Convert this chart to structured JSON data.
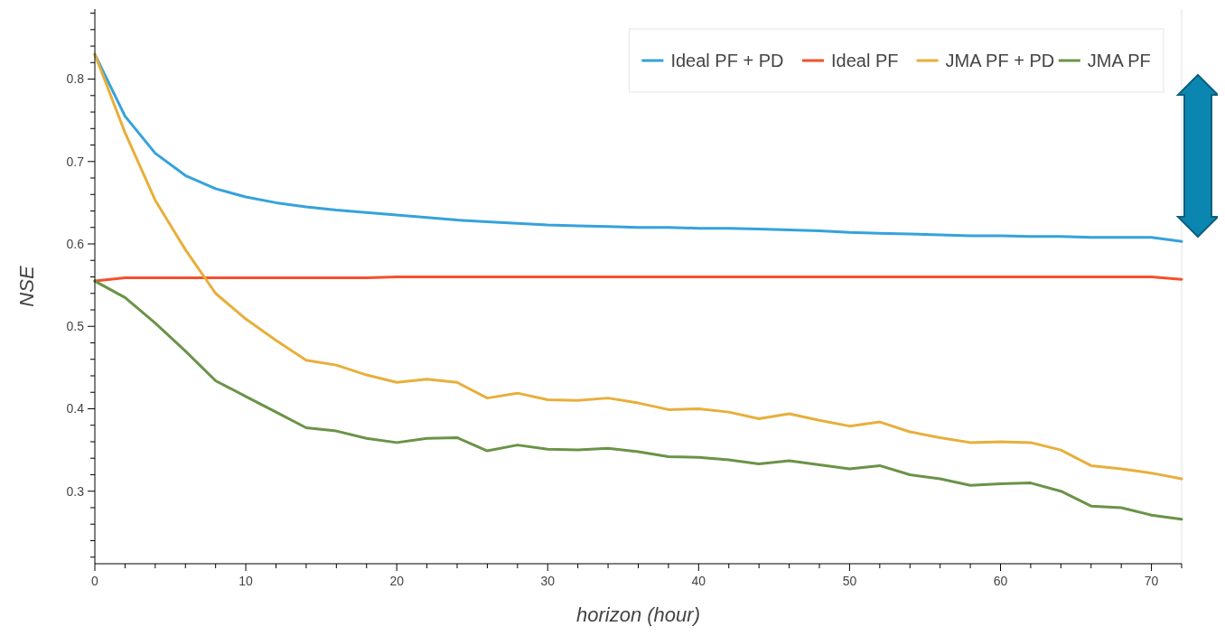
{
  "chart_data": {
    "type": "line",
    "xlabel": "horizon (hour)",
    "ylabel": "NSE",
    "x": [
      0,
      2,
      4,
      6,
      8,
      10,
      12,
      14,
      16,
      18,
      20,
      22,
      24,
      26,
      28,
      30,
      32,
      34,
      36,
      38,
      40,
      42,
      44,
      46,
      48,
      50,
      52,
      54,
      56,
      58,
      60,
      62,
      64,
      66,
      68,
      70,
      72
    ],
    "series": [
      {
        "name": "Ideal PF + PD",
        "color": "#35a2dc",
        "values": [
          0.83,
          0.755,
          0.71,
          0.683,
          0.667,
          0.657,
          0.65,
          0.645,
          0.641,
          0.638,
          0.635,
          0.632,
          0.629,
          0.627,
          0.625,
          0.623,
          0.622,
          0.621,
          0.62,
          0.62,
          0.619,
          0.619,
          0.618,
          0.617,
          0.616,
          0.614,
          0.613,
          0.612,
          0.611,
          0.61,
          0.61,
          0.609,
          0.609,
          0.608,
          0.608,
          0.608,
          0.603
        ]
      },
      {
        "name": "Ideal PF",
        "color": "#f4512c",
        "values": [
          0.555,
          0.559,
          0.559,
          0.559,
          0.559,
          0.559,
          0.559,
          0.559,
          0.559,
          0.559,
          0.56,
          0.56,
          0.56,
          0.56,
          0.56,
          0.56,
          0.56,
          0.56,
          0.56,
          0.56,
          0.56,
          0.56,
          0.56,
          0.56,
          0.56,
          0.56,
          0.56,
          0.56,
          0.56,
          0.56,
          0.56,
          0.56,
          0.56,
          0.56,
          0.56,
          0.56,
          0.557
        ]
      },
      {
        "name": "JMA PF + PD",
        "color": "#e7af3b",
        "values": [
          0.83,
          0.735,
          0.653,
          0.593,
          0.54,
          0.509,
          0.483,
          0.459,
          0.453,
          0.441,
          0.432,
          0.436,
          0.432,
          0.413,
          0.419,
          0.411,
          0.41,
          0.413,
          0.407,
          0.399,
          0.4,
          0.396,
          0.388,
          0.394,
          0.386,
          0.379,
          0.384,
          0.372,
          0.365,
          0.359,
          0.36,
          0.359,
          0.35,
          0.331,
          0.327,
          0.322,
          0.315
        ]
      },
      {
        "name": "JMA PF",
        "color": "#6a9347",
        "values": [
          0.555,
          0.535,
          0.504,
          0.47,
          0.434,
          0.415,
          0.396,
          0.377,
          0.373,
          0.364,
          0.359,
          0.364,
          0.365,
          0.349,
          0.356,
          0.351,
          0.35,
          0.352,
          0.348,
          0.342,
          0.341,
          0.338,
          0.333,
          0.337,
          0.332,
          0.327,
          0.331,
          0.32,
          0.315,
          0.307,
          0.309,
          0.31,
          0.3,
          0.282,
          0.28,
          0.271,
          0.266
        ]
      }
    ],
    "xlim": [
      0,
      72
    ],
    "xticks": [
      0,
      {
        "value": 2,
        "label": null
      },
      {
        "value": 4,
        "label": null
      },
      {
        "value": 6,
        "label": null
      },
      {
        "value": 8,
        "label": null
      },
      10,
      {
        "value": 12,
        "label": null
      },
      {
        "value": 14,
        "label": null
      },
      {
        "value": 16,
        "label": null
      },
      {
        "value": 18,
        "label": null
      },
      20,
      {
        "value": 22,
        "label": null
      },
      {
        "value": 24,
        "label": null
      },
      {
        "value": 26,
        "label": null
      },
      {
        "value": 28,
        "label": null
      },
      30,
      {
        "value": 32,
        "label": null
      },
      {
        "value": 34,
        "label": null
      },
      {
        "value": 36,
        "label": null
      },
      {
        "value": 38,
        "label": null
      },
      40,
      {
        "value": 42,
        "label": null
      },
      {
        "value": 44,
        "label": null
      },
      {
        "value": 46,
        "label": null
      },
      {
        "value": 48,
        "label": null
      },
      50,
      {
        "value": 52,
        "label": null
      },
      {
        "value": 54,
        "label": null
      },
      {
        "value": 56,
        "label": null
      },
      {
        "value": 58,
        "label": null
      },
      60,
      {
        "value": 62,
        "label": null
      },
      {
        "value": 64,
        "label": null
      },
      {
        "value": 66,
        "label": null
      },
      {
        "value": 68,
        "label": null
      },
      70,
      {
        "value": 72,
        "label": null
      }
    ],
    "ylim": [
      0.212,
      0.885
    ],
    "yticks": [
      {
        "value": 0.22,
        "label": null
      },
      {
        "value": 0.24,
        "label": null
      },
      {
        "value": 0.26,
        "label": null
      },
      {
        "value": 0.28,
        "label": null
      },
      0.3,
      {
        "value": 0.32,
        "label": null
      },
      {
        "value": 0.34,
        "label": null
      },
      {
        "value": 0.36,
        "label": null
      },
      {
        "value": 0.38,
        "label": null
      },
      0.4,
      {
        "value": 0.42,
        "label": null
      },
      {
        "value": 0.44,
        "label": null
      },
      {
        "value": 0.46,
        "label": null
      },
      {
        "value": 0.48,
        "label": null
      },
      0.5,
      {
        "value": 0.52,
        "label": null
      },
      {
        "value": 0.54,
        "label": null
      },
      {
        "value": 0.56,
        "label": null
      },
      {
        "value": 0.58,
        "label": null
      },
      0.6,
      {
        "value": 0.62,
        "label": null
      },
      {
        "value": 0.64,
        "label": null
      },
      {
        "value": 0.66,
        "label": null
      },
      {
        "value": 0.68,
        "label": null
      },
      0.7,
      {
        "value": 0.72,
        "label": null
      },
      {
        "value": 0.74,
        "label": null
      },
      {
        "value": 0.76,
        "label": null
      },
      {
        "value": 0.78,
        "label": null
      },
      0.8,
      {
        "value": 0.82,
        "label": null
      },
      {
        "value": 0.84,
        "label": null
      },
      {
        "value": 0.86,
        "label": null
      },
      {
        "value": 0.88,
        "label": null
      }
    ],
    "legend": "top right",
    "grid": false,
    "line_style": "solid",
    "marker": "none"
  }
}
